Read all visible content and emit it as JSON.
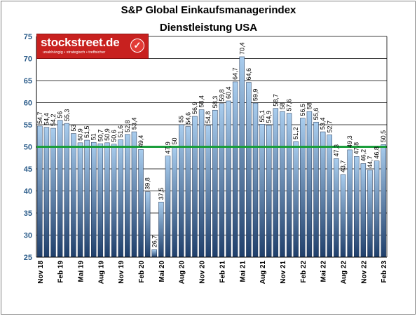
{
  "title": "S&P Global Einkaufsmanagerindex",
  "subtitle": "Dienstleistung USA",
  "logo": {
    "name": "stockstreet.de",
    "tagline": "unabhängig • strategisch • treffsicher",
    "icon": "checkmark-icon"
  },
  "colors": {
    "bar_top": "#a9cdee",
    "bar_bottom": "#1f3f6b",
    "bar_border": "#1a2f4f",
    "reference_line": "#1a9e3a",
    "grid": "#000000"
  },
  "chart_data": {
    "type": "bar",
    "title": "S&P Global Einkaufsmanagerindex",
    "subtitle": "Dienstleistung USA",
    "xlabel": "",
    "ylabel": "",
    "ylim": [
      25,
      75
    ],
    "yticks": [
      "25",
      "30",
      "35",
      "40",
      "45",
      "50",
      "55",
      "60",
      "65",
      "70",
      "75"
    ],
    "grid": true,
    "reference_line": 50,
    "xtick_labels": [
      {
        "index": 0,
        "label": "Nov 18"
      },
      {
        "index": 3,
        "label": "Feb 19"
      },
      {
        "index": 6,
        "label": "Mai 19"
      },
      {
        "index": 9,
        "label": "Aug 19"
      },
      {
        "index": 12,
        "label": "Nov 19"
      },
      {
        "index": 15,
        "label": "Feb 20"
      },
      {
        "index": 18,
        "label": "Mai 20"
      },
      {
        "index": 21,
        "label": "Aug 20"
      },
      {
        "index": 24,
        "label": "Nov 20"
      },
      {
        "index": 27,
        "label": "Feb 21"
      },
      {
        "index": 30,
        "label": "Mai 21"
      },
      {
        "index": 33,
        "label": "Aug 21"
      },
      {
        "index": 36,
        "label": "Nov 21"
      },
      {
        "index": 39,
        "label": "Feb 22"
      },
      {
        "index": 42,
        "label": "Mai 22"
      },
      {
        "index": 45,
        "label": "Aug 22"
      },
      {
        "index": 48,
        "label": "Nov 22"
      },
      {
        "index": 51,
        "label": "Feb 23"
      }
    ],
    "values": [
      54.7,
      54.4,
      54.2,
      56,
      55.3,
      53,
      50.9,
      51.5,
      51,
      50.7,
      50.9,
      50.6,
      51.6,
      52.8,
      53.4,
      49.4,
      39.8,
      26.7,
      37.5,
      47.9,
      50,
      55,
      54.6,
      56.9,
      58.4,
      54.8,
      58.3,
      59.8,
      60.4,
      64.7,
      70.4,
      64.6,
      59.9,
      55.1,
      54.9,
      58.7,
      58,
      57.6,
      51.2,
      56.5,
      58,
      55.6,
      53.4,
      52.7,
      47.3,
      43.7,
      49.3,
      47.8,
      46.2,
      44.7,
      46.8,
      50.5
    ],
    "labels": [
      "54,7",
      "54,4",
      "54,2",
      "56",
      "55,3",
      "53",
      "50,9",
      "51,5",
      "51",
      "50,7",
      "50,9",
      "50,6",
      "51,6",
      "52,8",
      "53,4",
      "49,4",
      "39,8",
      "26,7",
      "37,5",
      "47,9",
      "50",
      "55",
      "54,6",
      "56,9",
      "58,4",
      "54,8",
      "58,3",
      "59,8",
      "60,4",
      "64,7",
      "70,4",
      "64,6",
      "59,9",
      "55,1",
      "54,9",
      "58,7",
      "58",
      "57,6",
      "51,2",
      "56,5",
      "58",
      "55,6",
      "53,4",
      "52,7",
      "47,3",
      "43,7",
      "49,3",
      "47,8",
      "46,2",
      "44,7",
      "46,8",
      "50,5"
    ]
  }
}
